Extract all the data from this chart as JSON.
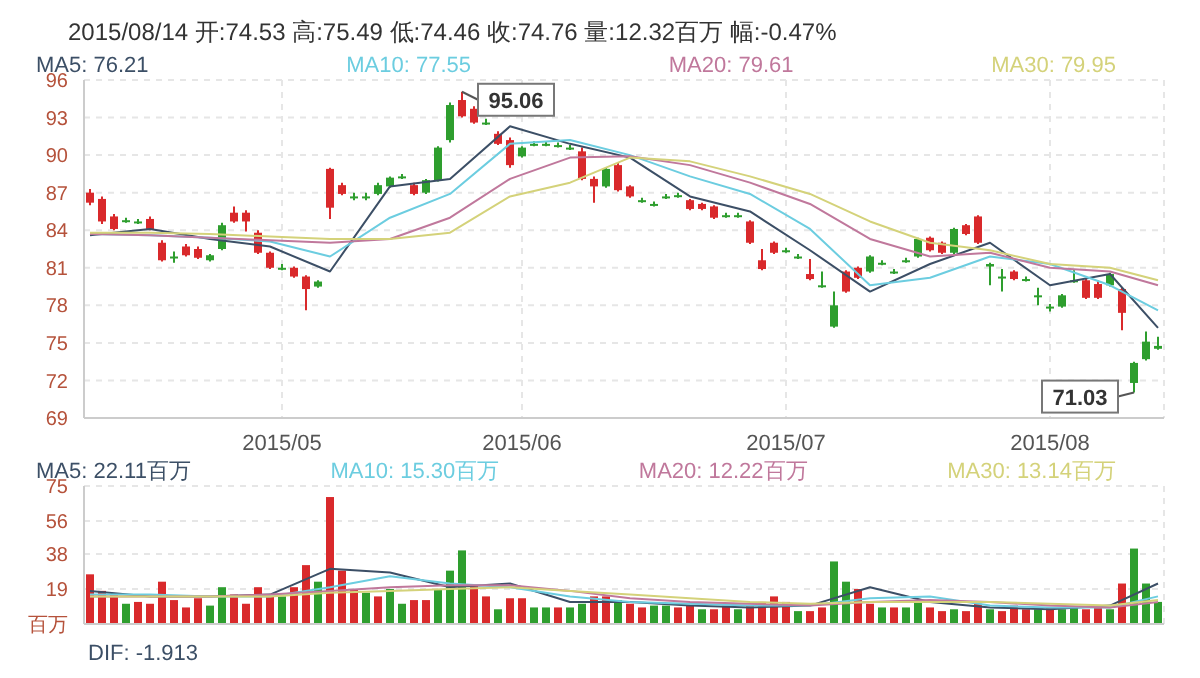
{
  "chart_data": [
    {
      "type": "candlestick",
      "title": "2015/08/14 开:74.53 高:75.49 低:74.46 收:74.76 量:12.32百万 幅:-0.47%",
      "categories": [
        null,
        null,
        null,
        null,
        null,
        null,
        null,
        null,
        null,
        null,
        null,
        null,
        null,
        null,
        null,
        null,
        "2015/05",
        null,
        null,
        null,
        null,
        null,
        null,
        null,
        null,
        null,
        null,
        null,
        null,
        null,
        null,
        null,
        null,
        null,
        null,
        null,
        "2015/06",
        null,
        null,
        null,
        null,
        null,
        null,
        null,
        null,
        null,
        null,
        null,
        null,
        null,
        null,
        null,
        null,
        null,
        null,
        null,
        null,
        null,
        "2015/07",
        null,
        null,
        null,
        null,
        null,
        null,
        null,
        null,
        null,
        null,
        null,
        null,
        null,
        null,
        null,
        null,
        null,
        null,
        null,
        null,
        null,
        "2015/08",
        null,
        null,
        null,
        null,
        null,
        null,
        null,
        null,
        null
      ],
      "ohlc": [
        [
          87.0,
          87.3,
          86.0,
          86.2
        ],
        [
          86.5,
          86.7,
          84.5,
          84.7
        ],
        [
          85.1,
          85.3,
          84.0,
          84.1
        ],
        [
          84.8,
          85.0,
          84.6,
          84.8
        ],
        [
          84.7,
          84.9,
          84.5,
          84.7
        ],
        [
          84.9,
          85.1,
          84.0,
          84.1
        ],
        [
          83.0,
          83.2,
          81.5,
          81.6
        ],
        [
          81.9,
          82.3,
          81.4,
          81.9
        ],
        [
          82.7,
          82.9,
          81.9,
          82.0
        ],
        [
          82.5,
          82.7,
          81.7,
          81.8
        ],
        [
          81.6,
          82.1,
          81.5,
          82.0
        ],
        [
          82.5,
          84.6,
          82.4,
          84.4
        ],
        [
          85.4,
          85.9,
          84.6,
          84.7
        ],
        [
          85.4,
          85.6,
          83.9,
          84.7
        ],
        [
          83.8,
          84.0,
          82.1,
          82.2
        ],
        [
          82.2,
          82.3,
          80.9,
          81.0
        ],
        [
          81.0,
          81.3,
          80.8,
          81.0
        ],
        [
          81.0,
          81.1,
          80.2,
          80.3
        ],
        [
          80.3,
          80.4,
          77.6,
          79.3
        ],
        [
          79.5,
          80.0,
          79.4,
          79.9
        ],
        [
          88.9,
          89.0,
          84.9,
          85.8
        ],
        [
          87.6,
          87.8,
          86.8,
          86.9
        ],
        [
          86.7,
          87.0,
          86.4,
          86.7
        ],
        [
          86.7,
          87.0,
          86.4,
          86.7
        ],
        [
          86.9,
          87.8,
          86.8,
          87.6
        ],
        [
          87.5,
          88.3,
          87.4,
          88.2
        ],
        [
          88.3,
          88.5,
          88.1,
          88.3
        ],
        [
          87.6,
          87.8,
          86.8,
          86.9
        ],
        [
          87.0,
          88.1,
          86.9,
          88.0
        ],
        [
          88.0,
          90.7,
          87.9,
          90.6
        ],
        [
          91.2,
          94.2,
          91.0,
          94.0
        ],
        [
          94.4,
          95.06,
          93.0,
          93.1
        ],
        [
          93.7,
          93.9,
          92.5,
          92.6
        ],
        [
          92.6,
          92.9,
          92.4,
          92.6
        ],
        [
          91.7,
          91.9,
          90.8,
          90.9
        ],
        [
          91.2,
          91.4,
          89.0,
          89.2
        ],
        [
          89.9,
          90.7,
          89.8,
          90.6
        ],
        [
          90.9,
          91.1,
          90.7,
          90.9
        ],
        [
          90.9,
          91.1,
          90.7,
          90.9
        ],
        [
          90.8,
          91.0,
          90.6,
          90.8
        ],
        [
          90.6,
          90.8,
          90.4,
          90.6
        ],
        [
          90.3,
          90.6,
          88.0,
          88.1
        ],
        [
          88.1,
          88.3,
          86.2,
          87.5
        ],
        [
          87.5,
          89.0,
          87.4,
          88.9
        ],
        [
          89.2,
          89.4,
          87.1,
          87.2
        ],
        [
          87.5,
          87.6,
          86.6,
          86.7
        ],
        [
          86.4,
          86.6,
          86.2,
          86.4
        ],
        [
          86.1,
          86.3,
          85.9,
          86.1
        ],
        [
          86.7,
          86.9,
          86.5,
          86.7
        ],
        [
          86.8,
          87.0,
          86.6,
          86.8
        ],
        [
          86.4,
          86.5,
          85.6,
          85.7
        ],
        [
          86.1,
          86.2,
          85.6,
          85.7
        ],
        [
          85.9,
          86.0,
          84.9,
          85.0
        ],
        [
          85.2,
          85.4,
          85.0,
          85.2
        ],
        [
          85.2,
          85.4,
          85.0,
          85.2
        ],
        [
          84.7,
          84.8,
          82.9,
          83.0
        ],
        [
          81.6,
          82.5,
          80.8,
          80.9
        ],
        [
          83.0,
          83.1,
          82.1,
          82.2
        ],
        [
          82.4,
          82.6,
          82.2,
          82.4
        ],
        [
          81.9,
          82.1,
          81.7,
          81.9
        ],
        [
          80.5,
          81.7,
          80.0,
          80.1
        ],
        [
          79.6,
          80.7,
          79.4,
          79.6
        ],
        [
          76.3,
          79.1,
          76.2,
          78.0
        ],
        [
          80.7,
          80.8,
          79.0,
          79.1
        ],
        [
          81.0,
          81.1,
          80.1,
          80.2
        ],
        [
          80.7,
          82.0,
          80.6,
          81.9
        ],
        [
          81.4,
          81.6,
          81.2,
          81.4
        ],
        [
          80.7,
          80.9,
          80.5,
          80.7
        ],
        [
          81.6,
          81.8,
          81.4,
          81.6
        ],
        [
          81.9,
          83.4,
          81.8,
          83.3
        ],
        [
          83.4,
          83.5,
          82.3,
          82.4
        ],
        [
          83.0,
          83.1,
          82.1,
          82.2
        ],
        [
          82.2,
          84.2,
          82.1,
          84.1
        ],
        [
          84.4,
          84.5,
          83.6,
          83.7
        ],
        [
          85.1,
          85.2,
          82.9,
          83.0
        ],
        [
          81.1,
          81.4,
          79.6,
          81.3
        ],
        [
          80.3,
          80.9,
          79.1,
          80.3
        ],
        [
          80.7,
          80.8,
          80.0,
          80.1
        ],
        [
          80.1,
          80.3,
          79.9,
          80.1
        ],
        [
          78.8,
          79.4,
          78.0,
          78.8
        ],
        [
          77.9,
          78.1,
          77.5,
          77.9
        ],
        [
          77.9,
          78.9,
          77.8,
          78.8
        ],
        [
          80.0,
          80.8,
          79.8,
          80.0
        ],
        [
          80.0,
          80.1,
          78.5,
          78.6
        ],
        [
          79.7,
          80.0,
          78.5,
          78.6
        ],
        [
          79.6,
          80.6,
          79.5,
          80.5
        ],
        [
          79.3,
          79.4,
          76.0,
          77.4
        ],
        [
          71.8,
          73.5,
          71.03,
          73.4
        ],
        [
          73.7,
          75.9,
          73.6,
          75.1
        ],
        [
          74.53,
          75.49,
          74.46,
          74.76
        ]
      ],
      "colors": [
        "#d9292b",
        "#d9292b",
        "#d9292b",
        "#2e9e2e",
        "#2e9e2e",
        "#d9292b",
        "#d9292b",
        "#2e9e2e",
        "#d9292b",
        "#d9292b",
        "#2e9e2e",
        "#2e9e2e",
        "#d9292b",
        "#d9292b",
        "#d9292b",
        "#d9292b",
        "#2e9e2e",
        "#d9292b",
        "#d9292b",
        "#2e9e2e",
        "#d9292b",
        "#d9292b",
        "#2e9e2e",
        "#2e9e2e",
        "#2e9e2e",
        "#2e9e2e",
        "#2e9e2e",
        "#d9292b",
        "#2e9e2e",
        "#2e9e2e",
        "#2e9e2e",
        "#d9292b",
        "#d9292b",
        "#2e9e2e",
        "#d9292b",
        "#d9292b",
        "#2e9e2e",
        "#2e9e2e",
        "#2e9e2e",
        "#2e9e2e",
        "#2e9e2e",
        "#d9292b",
        "#d9292b",
        "#2e9e2e",
        "#d9292b",
        "#d9292b",
        "#2e9e2e",
        "#2e9e2e",
        "#2e9e2e",
        "#2e9e2e",
        "#d9292b",
        "#d9292b",
        "#d9292b",
        "#2e9e2e",
        "#2e9e2e",
        "#d9292b",
        "#d9292b",
        "#d9292b",
        "#2e9e2e",
        "#2e9e2e",
        "#d9292b",
        "#2e9e2e",
        "#2e9e2e",
        "#d9292b",
        "#d9292b",
        "#2e9e2e",
        "#2e9e2e",
        "#2e9e2e",
        "#2e9e2e",
        "#2e9e2e",
        "#d9292b",
        "#d9292b",
        "#2e9e2e",
        "#d9292b",
        "#d9292b",
        "#2e9e2e",
        "#2e9e2e",
        "#d9292b",
        "#2e9e2e",
        "#2e9e2e",
        "#2e9e2e",
        "#2e9e2e",
        "#2e9e2e",
        "#d9292b",
        "#d9292b",
        "#2e9e2e",
        "#d9292b",
        "#2e9e2e",
        "#2e9e2e",
        "#2e9e2e"
      ],
      "series": [
        {
          "name": "MA5: 76.21",
          "color": "#3c4f66",
          "type": "line",
          "values": [
            83.6,
            null,
            null,
            null,
            null,
            84.1,
            null,
            null,
            null,
            null,
            83.3,
            null,
            null,
            null,
            null,
            82.7,
            null,
            null,
            null,
            null,
            80.7,
            null,
            null,
            null,
            null,
            87.5,
            null,
            null,
            null,
            null,
            88.1,
            null,
            null,
            null,
            null,
            92.3,
            null,
            null,
            null,
            null,
            90.9,
            null,
            null,
            null,
            null,
            89.8,
            null,
            null,
            null,
            null,
            86.7,
            null,
            null,
            null,
            null,
            85.5,
            null,
            null,
            null,
            null,
            82.4,
            null,
            null,
            null,
            null,
            79.1,
            null,
            null,
            null,
            null,
            81.3,
            null,
            null,
            null,
            null,
            83.0,
            null,
            null,
            null,
            null,
            79.6,
            null,
            null,
            null,
            null,
            80.5,
            null,
            null,
            null,
            76.2
          ]
        },
        {
          "name": "MA10: 77.55",
          "color": "#6ccde0",
          "type": "line",
          "values": [
            83.7,
            null,
            null,
            null,
            null,
            83.6,
            null,
            null,
            null,
            null,
            83.4,
            null,
            null,
            null,
            null,
            83.1,
            null,
            null,
            null,
            null,
            81.9,
            null,
            null,
            null,
            null,
            85.0,
            null,
            null,
            null,
            null,
            86.9,
            null,
            null,
            null,
            null,
            90.9,
            null,
            null,
            null,
            null,
            91.2,
            null,
            null,
            null,
            null,
            90.0,
            null,
            null,
            null,
            null,
            88.3,
            null,
            null,
            null,
            null,
            86.9,
            null,
            null,
            null,
            null,
            84.1,
            null,
            null,
            null,
            null,
            79.6,
            null,
            null,
            null,
            null,
            80.2,
            null,
            null,
            null,
            null,
            81.9,
            null,
            null,
            null,
            null,
            81.3,
            null,
            null,
            null,
            null,
            79.6,
            null,
            null,
            null,
            77.6
          ]
        },
        {
          "name": "MA20: 79.61",
          "color": "#c0789c",
          "type": "line",
          "values": [
            83.7,
            null,
            null,
            null,
            null,
            83.6,
            null,
            null,
            null,
            null,
            83.4,
            null,
            null,
            null,
            null,
            83.2,
            null,
            null,
            null,
            null,
            83.0,
            null,
            null,
            null,
            null,
            83.3,
            null,
            null,
            null,
            null,
            85.0,
            null,
            null,
            null,
            null,
            88.1,
            null,
            null,
            null,
            null,
            89.8,
            null,
            null,
            null,
            null,
            89.9,
            null,
            null,
            null,
            null,
            89.2,
            null,
            null,
            null,
            null,
            87.8,
            null,
            null,
            null,
            null,
            86.1,
            null,
            null,
            null,
            null,
            83.3,
            null,
            null,
            null,
            null,
            81.9,
            null,
            null,
            null,
            null,
            82.2,
            null,
            null,
            null,
            null,
            81.0,
            null,
            null,
            null,
            null,
            80.7,
            null,
            null,
            null,
            79.6
          ]
        },
        {
          "name": "MA30: 79.95",
          "color": "#d4d27a",
          "type": "line",
          "values": [
            83.8,
            null,
            null,
            null,
            null,
            83.8,
            null,
            null,
            null,
            null,
            83.7,
            null,
            null,
            null,
            null,
            83.5,
            null,
            null,
            null,
            null,
            83.3,
            null,
            null,
            null,
            null,
            83.3,
            null,
            null,
            null,
            null,
            83.8,
            null,
            null,
            null,
            null,
            86.7,
            null,
            null,
            null,
            null,
            87.8,
            null,
            null,
            null,
            null,
            89.8,
            null,
            null,
            null,
            null,
            89.5,
            null,
            null,
            null,
            null,
            88.3,
            null,
            null,
            null,
            null,
            86.9,
            null,
            null,
            null,
            null,
            84.7,
            null,
            null,
            null,
            null,
            83.0,
            null,
            null,
            null,
            null,
            82.4,
            null,
            null,
            null,
            null,
            81.3,
            null,
            null,
            null,
            null,
            81.0,
            null,
            null,
            null,
            80.0
          ]
        }
      ],
      "ylim": [
        69,
        96
      ],
      "yticks": [
        69,
        72,
        75,
        78,
        81,
        84,
        87,
        90,
        93,
        96
      ],
      "grid": true,
      "legend": "top",
      "marker": "none",
      "annotations": [
        "95.06",
        "71.03"
      ]
    },
    {
      "type": "bar",
      "categories": [
        null,
        null,
        null,
        null,
        null,
        null,
        null,
        null,
        null,
        null,
        null,
        null,
        null,
        null,
        null,
        null,
        "2015/05",
        null,
        null,
        null,
        null,
        null,
        null,
        null,
        null,
        null,
        null,
        null,
        null,
        null,
        null,
        null,
        null,
        null,
        null,
        null,
        "2015/06",
        null,
        null,
        null,
        null,
        null,
        null,
        null,
        null,
        null,
        null,
        null,
        null,
        null,
        null,
        null,
        null,
        null,
        null,
        null,
        null,
        null,
        "2015/07",
        null,
        null,
        null,
        null,
        null,
        null,
        null,
        null,
        null,
        null,
        null,
        null,
        null,
        null,
        null,
        null,
        null,
        null,
        null,
        null,
        null,
        "2015/08",
        null,
        null,
        null,
        null,
        null,
        null,
        null,
        null,
        null
      ],
      "values": [
        27,
        18,
        16,
        11,
        12,
        11,
        23,
        13,
        9,
        14,
        10,
        20,
        16,
        11,
        20,
        15,
        15,
        20,
        32,
        23,
        69,
        29,
        19,
        17,
        15,
        19,
        11,
        13,
        13,
        19,
        29,
        40,
        21,
        15,
        8,
        14,
        14,
        9,
        9,
        9,
        9,
        11,
        15,
        15,
        13,
        11,
        9,
        10,
        10,
        9,
        10,
        8,
        8,
        10,
        8,
        10,
        12,
        15,
        12,
        7,
        7,
        9,
        34,
        23,
        19,
        11,
        9,
        9,
        9,
        13,
        9,
        7,
        8,
        7,
        11,
        8,
        7,
        10,
        8,
        8,
        9,
        8,
        9,
        8,
        9,
        8,
        22,
        41,
        22,
        12
      ],
      "colors": [
        "#d9292b",
        "#d9292b",
        "#d9292b",
        "#2e9e2e",
        "#d9292b",
        "#d9292b",
        "#d9292b",
        "#d9292b",
        "#d9292b",
        "#d9292b",
        "#2e9e2e",
        "#2e9e2e",
        "#d9292b",
        "#d9292b",
        "#d9292b",
        "#d9292b",
        "#2e9e2e",
        "#d9292b",
        "#d9292b",
        "#2e9e2e",
        "#d9292b",
        "#d9292b",
        "#d9292b",
        "#2e9e2e",
        "#d9292b",
        "#2e9e2e",
        "#2e9e2e",
        "#d9292b",
        "#d9292b",
        "#2e9e2e",
        "#2e9e2e",
        "#2e9e2e",
        "#d9292b",
        "#d9292b",
        "#2e9e2e",
        "#d9292b",
        "#d9292b",
        "#2e9e2e",
        "#2e9e2e",
        "#d9292b",
        "#2e9e2e",
        "#2e9e2e",
        "#d9292b",
        "#d9292b",
        "#2e9e2e",
        "#d9292b",
        "#d9292b",
        "#2e9e2e",
        "#2e9e2e",
        "#d9292b",
        "#d9292b",
        "#2e9e2e",
        "#d9292b",
        "#d9292b",
        "#2e9e2e",
        "#d9292b",
        "#d9292b",
        "#d9292b",
        "#d9292b",
        "#2e9e2e",
        "#d9292b",
        "#d9292b",
        "#2e9e2e",
        "#2e9e2e",
        "#d9292b",
        "#d9292b",
        "#2e9e2e",
        "#d9292b",
        "#2e9e2e",
        "#2e9e2e",
        "#d9292b",
        "#d9292b",
        "#2e9e2e",
        "#d9292b",
        "#d9292b",
        "#2e9e2e",
        "#d9292b",
        "#d9292b",
        "#d9292b",
        "#2e9e2e",
        "#d9292b",
        "#2e9e2e",
        "#2e9e2e",
        "#d9292b",
        "#d9292b",
        "#2e9e2e",
        "#d9292b",
        "#2e9e2e",
        "#2e9e2e",
        "#2e9e2e"
      ],
      "series": [
        {
          "name": "MA5: 22.11百万",
          "color": "#3c4f66",
          "type": "line",
          "values": [
            18,
            null,
            null,
            null,
            null,
            15,
            null,
            null,
            null,
            null,
            15,
            null,
            null,
            null,
            null,
            16,
            null,
            null,
            null,
            null,
            30,
            null,
            null,
            null,
            null,
            28,
            null,
            null,
            null,
            null,
            20,
            null,
            null,
            null,
            null,
            22,
            null,
            null,
            null,
            null,
            12,
            null,
            null,
            null,
            null,
            12,
            null,
            null,
            null,
            null,
            10,
            null,
            null,
            null,
            null,
            9,
            null,
            null,
            null,
            null,
            10,
            null,
            null,
            null,
            null,
            20,
            null,
            null,
            null,
            null,
            12,
            null,
            null,
            null,
            null,
            9,
            null,
            null,
            null,
            null,
            8,
            null,
            null,
            null,
            null,
            10,
            null,
            null,
            null,
            22
          ]
        },
        {
          "name": "MA10: 15.30百万",
          "color": "#6ccde0",
          "type": "line",
          "values": [
            16,
            null,
            null,
            null,
            null,
            16,
            null,
            null,
            null,
            null,
            15,
            null,
            null,
            null,
            null,
            15,
            null,
            null,
            null,
            null,
            20,
            null,
            null,
            null,
            null,
            26,
            null,
            null,
            null,
            null,
            22,
            null,
            null,
            null,
            null,
            20,
            null,
            null,
            null,
            null,
            15,
            null,
            null,
            null,
            null,
            12,
            null,
            null,
            null,
            null,
            11,
            null,
            null,
            null,
            null,
            10,
            null,
            null,
            null,
            null,
            10,
            null,
            null,
            null,
            null,
            14,
            null,
            null,
            null,
            null,
            15,
            null,
            null,
            null,
            null,
            10,
            null,
            null,
            null,
            null,
            9,
            null,
            null,
            null,
            null,
            9,
            null,
            null,
            null,
            15
          ]
        },
        {
          "name": "MA20: 12.22百万",
          "color": "#c0789c",
          "type": "line",
          "values": [
            15,
            null,
            null,
            null,
            null,
            15,
            null,
            null,
            null,
            null,
            15,
            null,
            null,
            null,
            null,
            16,
            null,
            null,
            null,
            null,
            18,
            null,
            null,
            null,
            null,
            20,
            null,
            null,
            null,
            null,
            21,
            null,
            null,
            null,
            null,
            21,
            null,
            null,
            null,
            null,
            18,
            null,
            null,
            null,
            null,
            14,
            null,
            null,
            null,
            null,
            12,
            null,
            null,
            null,
            null,
            11,
            null,
            null,
            null,
            null,
            10,
            null,
            null,
            null,
            null,
            12,
            null,
            null,
            null,
            null,
            13,
            null,
            null,
            null,
            null,
            12,
            null,
            null,
            null,
            null,
            10,
            null,
            null,
            null,
            null,
            9,
            null,
            null,
            null,
            12
          ]
        },
        {
          "name": "MA30: 13.14百万",
          "color": "#d4d27a",
          "type": "line",
          "values": [
            15,
            null,
            null,
            null,
            null,
            15,
            null,
            null,
            null,
            null,
            15,
            null,
            null,
            null,
            null,
            15,
            null,
            null,
            null,
            null,
            17,
            null,
            null,
            null,
            null,
            18,
            null,
            null,
            null,
            null,
            19,
            null,
            null,
            null,
            null,
            20,
            null,
            null,
            null,
            null,
            18,
            null,
            null,
            null,
            null,
            16,
            null,
            null,
            null,
            null,
            14,
            null,
            null,
            null,
            null,
            12,
            null,
            null,
            null,
            null,
            11,
            null,
            null,
            null,
            null,
            12,
            null,
            null,
            null,
            null,
            12,
            null,
            null,
            null,
            null,
            12,
            null,
            null,
            null,
            null,
            11,
            null,
            null,
            null,
            null,
            10,
            null,
            null,
            null,
            13
          ]
        }
      ],
      "ylim": [
        0,
        75
      ],
      "yticks": [
        {
          "value": 0,
          "label": "百万"
        },
        19,
        38,
        56,
        75
      ],
      "grid": true,
      "legend": "top",
      "marker": "none",
      "tick_labels": "y",
      "annotations": [
        "DIF: -1.913"
      ]
    }
  ]
}
